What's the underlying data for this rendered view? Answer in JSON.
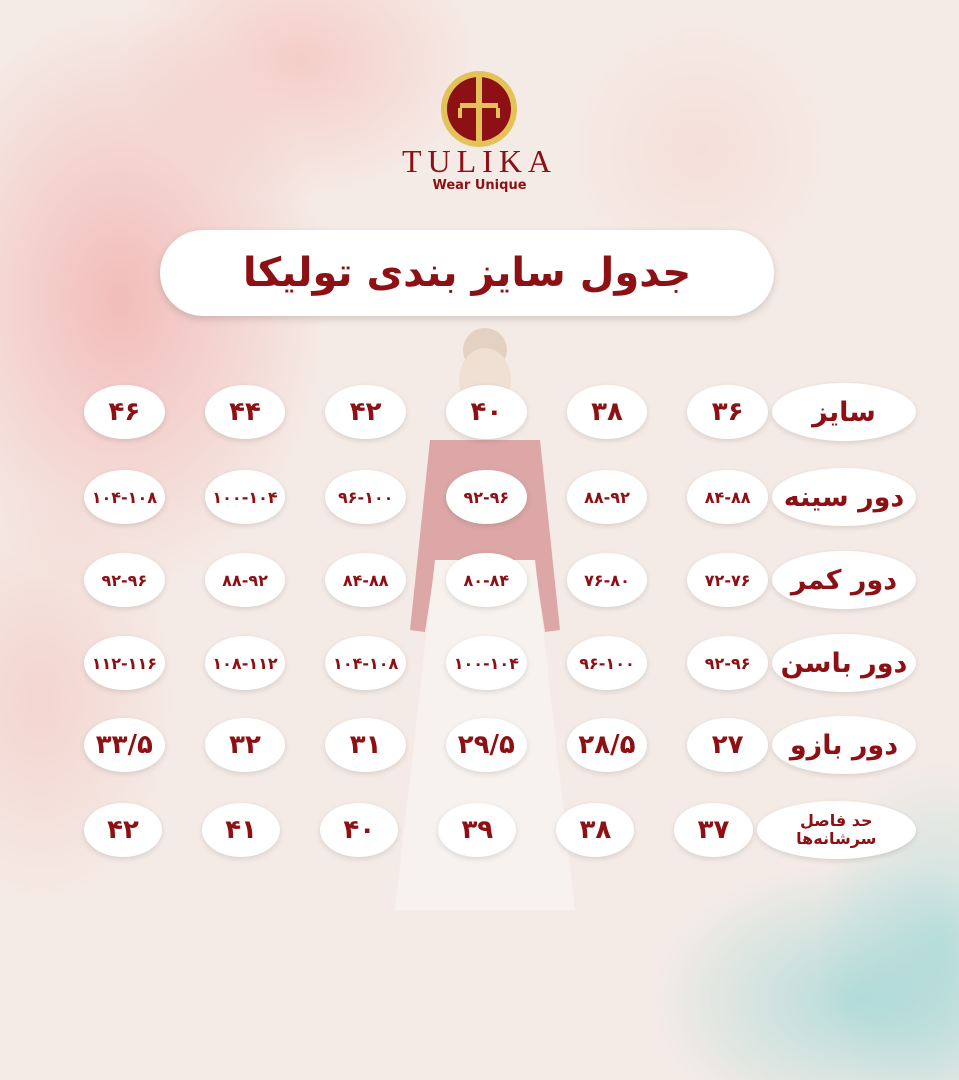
{
  "brand": {
    "name": "TULIKA",
    "tagline": "Wear Unique",
    "color": "#8c1014",
    "ring_color": "#e3c25a"
  },
  "title": "جدول سایز بندی تولیکا",
  "rows": [
    {
      "label": "سایز",
      "values": [
        "۳۶",
        "۳۸",
        "۴۰",
        "۴۲",
        "۴۴",
        "۴۶"
      ]
    },
    {
      "label": "دور سینه",
      "values": [
        "۸۴-۸۸",
        "۸۸-۹۲",
        "۹۲-۹۶",
        "۹۶-۱۰۰",
        "۱۰۰-۱۰۴",
        "۱۰۴-۱۰۸"
      ]
    },
    {
      "label": "دور کمر",
      "values": [
        "۷۲-۷۶",
        "۷۶-۸۰",
        "۸۰-۸۴",
        "۸۴-۸۸",
        "۸۸-۹۲",
        "۹۲-۹۶"
      ]
    },
    {
      "label": "دور باسن",
      "values": [
        "۹۲-۹۶",
        "۹۶-۱۰۰",
        "۱۰۰-۱۰۴",
        "۱۰۴-۱۰۸",
        "۱۰۸-۱۱۲",
        "۱۱۲-۱۱۶"
      ]
    },
    {
      "label": "دور بازو",
      "values": [
        "۲۷",
        "۲۸/۵",
        "۲۹/۵",
        "۳۱",
        "۳۲",
        "۳۳/۵"
      ]
    },
    {
      "label": "حد فاصل سرشانه‌ها",
      "values": [
        "۳۷",
        "۳۸",
        "۳۹",
        "۴۰",
        "۴۱",
        "۴۲"
      ]
    }
  ]
}
